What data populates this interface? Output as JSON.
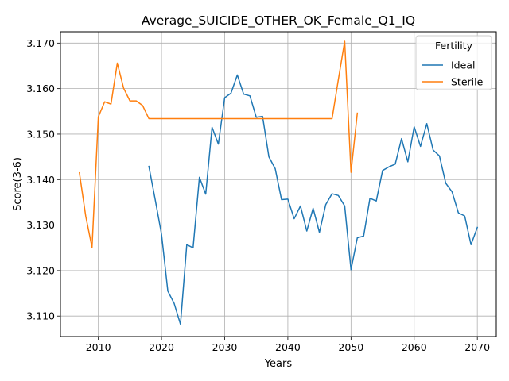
{
  "chart_data": {
    "type": "line",
    "title": "Average_SUICIDE_OTHER_OK_Female_Q1_IQ",
    "xlabel": "Years",
    "ylabel": "Score(3-6)",
    "xlim": [
      2004,
      2073
    ],
    "ylim": [
      3.1055,
      3.1725
    ],
    "xticks": [
      2010,
      2020,
      2030,
      2040,
      2050,
      2060,
      2070
    ],
    "yticks": [
      3.11,
      3.12,
      3.13,
      3.14,
      3.15,
      3.16,
      3.17
    ],
    "grid": true,
    "legend": {
      "title": "Fertility",
      "position": "top-right"
    },
    "series": [
      {
        "name": "Ideal",
        "color": "#1f77b4",
        "x": [
          2018,
          2019,
          2020,
          2021,
          2022,
          2023,
          2024,
          2025,
          2026,
          2027,
          2028,
          2029,
          2030,
          2031,
          2032,
          2033,
          2034,
          2035,
          2036,
          2037,
          2038,
          2039,
          2040,
          2041,
          2042,
          2043,
          2044,
          2045,
          2046,
          2047,
          2048,
          2049,
          2050,
          2051,
          2052,
          2053,
          2054,
          2055,
          2056,
          2057,
          2058,
          2059,
          2060,
          2061,
          2062,
          2063,
          2064,
          2065,
          2066,
          2067,
          2068,
          2069,
          2070
        ],
        "y": [
          3.1429,
          3.1356,
          3.128,
          3.1155,
          3.1128,
          3.1082,
          3.1257,
          3.125,
          3.1405,
          3.1368,
          3.1515,
          3.1478,
          3.158,
          3.159,
          3.163,
          3.1588,
          3.1584,
          3.1537,
          3.1539,
          3.145,
          3.1424,
          3.1356,
          3.1357,
          3.1314,
          3.1342,
          3.1287,
          3.1337,
          3.1284,
          3.1345,
          3.1369,
          3.1365,
          3.1342,
          3.1202,
          3.1272,
          3.1276,
          3.1359,
          3.1353,
          3.142,
          3.1428,
          3.1434,
          3.149,
          3.1439,
          3.1516,
          3.1473,
          3.1523,
          3.1465,
          3.1452,
          3.1392,
          3.1373,
          3.1327,
          3.132,
          3.1257,
          3.1295
        ]
      },
      {
        "name": "Sterile",
        "color": "#ff7f0e",
        "x": [
          2007,
          2008,
          2009,
          2010,
          2011,
          2012,
          2013,
          2014,
          2015,
          2016,
          2017,
          2018,
          2019,
          2020,
          2021,
          2022,
          2023,
          2024,
          2025,
          2026,
          2027,
          2028,
          2029,
          2030,
          2031,
          2032,
          2033,
          2034,
          2035,
          2036,
          2037,
          2038,
          2039,
          2040,
          2041,
          2042,
          2043,
          2044,
          2045,
          2046,
          2047,
          2048,
          2049,
          2050,
          2051
        ],
        "y": [
          3.1415,
          3.132,
          3.1251,
          3.1538,
          3.1571,
          3.1566,
          3.1656,
          3.1601,
          3.1573,
          3.1573,
          3.1563,
          3.1534,
          3.1534,
          3.1534,
          3.1534,
          3.1534,
          3.1534,
          3.1534,
          3.1534,
          3.1534,
          3.1534,
          3.1534,
          3.1534,
          3.1534,
          3.1534,
          3.1534,
          3.1534,
          3.1534,
          3.1534,
          3.1534,
          3.1534,
          3.1534,
          3.1534,
          3.1534,
          3.1534,
          3.1534,
          3.1534,
          3.1534,
          3.1534,
          3.1534,
          3.1534,
          3.162,
          3.1704,
          3.1416,
          3.1546
        ]
      }
    ]
  }
}
